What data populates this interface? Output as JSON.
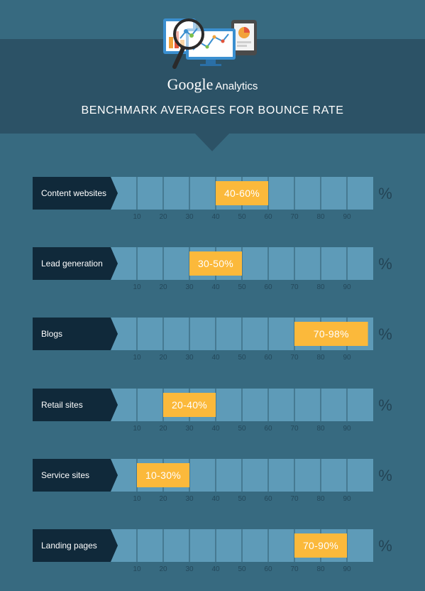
{
  "header": {
    "brand_google": "Google",
    "brand_product": "Analytics",
    "title": "BENCHMARK AVERAGES FOR BOUNCE RATE"
  },
  "icons": [
    "bar-chart-icon",
    "magnifier-icon",
    "line-chart-monitor-icon",
    "pie-chart-tablet-icon"
  ],
  "colors": {
    "background": "#376a80",
    "header_band": "#2c5266",
    "label_box": "#10293a",
    "bar_track": "#5e9bb8",
    "grid_line": "#3f6f86",
    "range_fill": "#fbb93b"
  },
  "chart_data": {
    "type": "bar",
    "orientation": "horizontal",
    "unit": "%",
    "xlim": [
      0,
      100
    ],
    "ticks": [
      10,
      20,
      30,
      40,
      50,
      60,
      70,
      80,
      90
    ],
    "categories": [
      "Content websites",
      "Lead generation",
      "Blogs",
      "Retail sites",
      "Service sites",
      "Landing pages"
    ],
    "ranges": [
      {
        "category": "Content websites",
        "low": 40,
        "high": 60,
        "label": "40-60%"
      },
      {
        "category": "Lead generation",
        "low": 30,
        "high": 50,
        "label": "30-50%"
      },
      {
        "category": "Blogs",
        "low": 70,
        "high": 98,
        "label": "70-98%"
      },
      {
        "category": "Retail sites",
        "low": 20,
        "high": 40,
        "label": "20-40%"
      },
      {
        "category": "Service sites",
        "low": 10,
        "high": 30,
        "label": "10-30%"
      },
      {
        "category": "Landing pages",
        "low": 70,
        "high": 90,
        "label": "70-90%"
      }
    ],
    "legend": "none"
  }
}
